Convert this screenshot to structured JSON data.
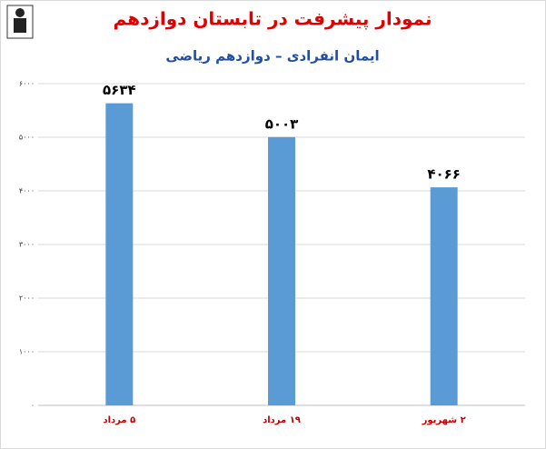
{
  "chart_data": {
    "type": "bar",
    "title": "نمودار پیشرفت در تابستان دوازدهم",
    "subtitle": "ایمان انفرادی – دوازدهم ریاضی",
    "categories": [
      "۵ مرداد",
      "۱۹ مرداد",
      "۲ شهریور"
    ],
    "values": [
      5634,
      5003,
      4066
    ],
    "value_labels": [
      "۵۶۳۴",
      "۵۰۰۳",
      "۴۰۶۶"
    ],
    "color": "#5b9bd5",
    "ylim": [
      0,
      6000
    ],
    "yticks": [
      {
        "value": 0,
        "label": "۰"
      },
      {
        "value": 1000,
        "label": "۱۰۰۰"
      },
      {
        "value": 2000,
        "label": "۲۰۰۰"
      },
      {
        "value": 3000,
        "label": "۳۰۰۰"
      },
      {
        "value": 4000,
        "label": "۴۰۰۰"
      },
      {
        "value": 5000,
        "label": "۵۰۰۰"
      },
      {
        "value": 6000,
        "label": "۶۰۰۰"
      }
    ],
    "grid": true
  }
}
